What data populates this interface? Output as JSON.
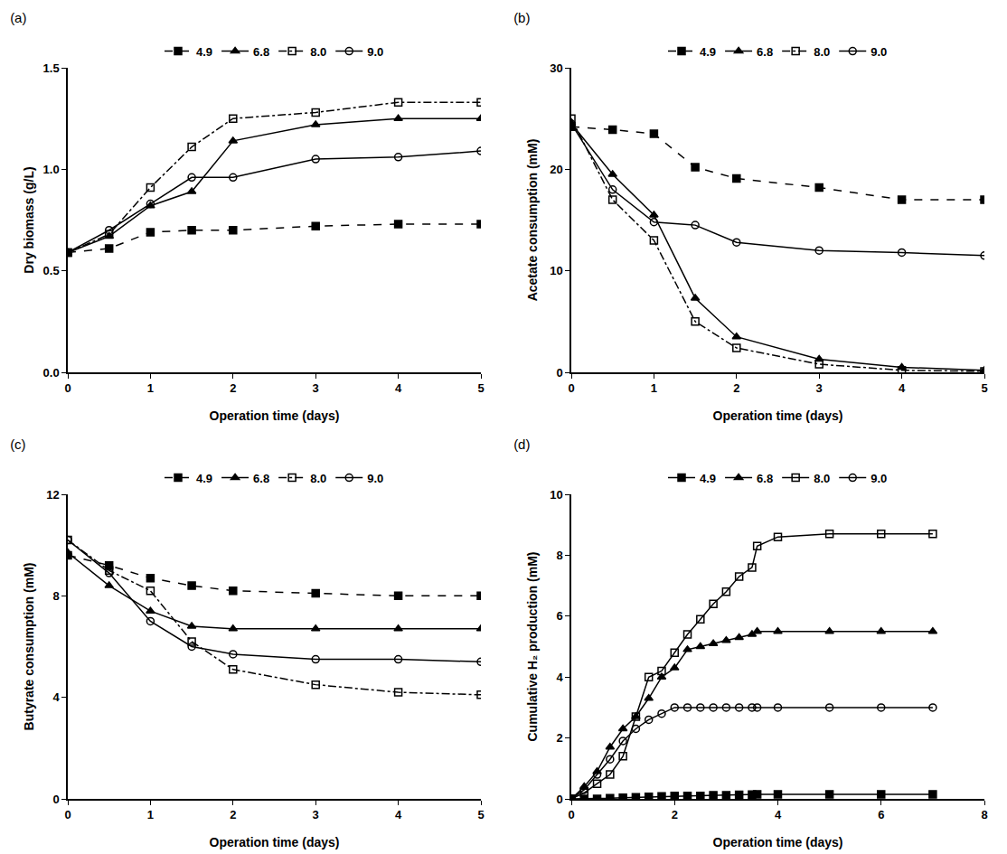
{
  "chart_data": [
    {
      "type": "line",
      "title": "(a)",
      "x_label": "Operation time (days)",
      "y_label": "Dry biomass (g/L)",
      "x": [
        0,
        0.5,
        1,
        1.5,
        2,
        3,
        4,
        5
      ],
      "series": [
        {
          "name": "4.9",
          "color": "#000000",
          "marker": "square",
          "line_style": "dash",
          "values": [
            0.59,
            0.61,
            0.69,
            0.7,
            0.7,
            0.72,
            0.73,
            0.73
          ]
        },
        {
          "name": "6.8",
          "color": "#000000",
          "marker": "triangle-up",
          "line_style": "solid",
          "values": [
            0.59,
            0.67,
            0.82,
            0.89,
            1.14,
            1.22,
            1.25,
            1.25
          ]
        },
        {
          "name": "8.0",
          "color": "#000000",
          "marker": "square-open",
          "line_style": "dashdot",
          "values": [
            0.59,
            0.68,
            0.91,
            1.11,
            1.25,
            1.28,
            1.33,
            1.33
          ]
        },
        {
          "name": "9.0",
          "color": "#000000",
          "marker": "circle-open",
          "line_style": "solid",
          "values": [
            0.59,
            0.7,
            0.83,
            0.96,
            0.96,
            1.05,
            1.06,
            1.09
          ]
        }
      ],
      "xlim": [
        0,
        5
      ],
      "xticks": [
        0,
        1,
        2,
        3,
        4,
        5
      ],
      "ylim": [
        0,
        1.5
      ],
      "yticks": [
        {
          "value": 0,
          "label": "0.0"
        },
        {
          "value": 0.5,
          "label": "0.5"
        },
        {
          "value": 1,
          "label": "1.0"
        },
        {
          "value": 1.5,
          "label": "1.5"
        }
      ],
      "grid": false,
      "legend": "top"
    },
    {
      "type": "line",
      "title": "(b)",
      "x_label": "Operation time (days)",
      "y_label": "Acetate consumption (mM)",
      "x": [
        0,
        0.5,
        1,
        1.5,
        2,
        3,
        4,
        5
      ],
      "series": [
        {
          "name": "4.9",
          "color": "#000000",
          "marker": "square",
          "line_style": "dash",
          "values": [
            24.2,
            23.9,
            23.5,
            20.2,
            19.1,
            18.2,
            17.0,
            17.0
          ]
        },
        {
          "name": "6.8",
          "color": "#000000",
          "marker": "triangle-up",
          "line_style": "solid",
          "values": [
            24.5,
            19.5,
            15.5,
            7.3,
            3.5,
            1.3,
            0.5,
            0.2
          ]
        },
        {
          "name": "8.0",
          "color": "#000000",
          "marker": "square-open",
          "line_style": "dashdot",
          "values": [
            25.0,
            17.0,
            13.0,
            5.0,
            2.4,
            0.8,
            0.2,
            0.1
          ]
        },
        {
          "name": "9.0",
          "color": "#000000",
          "marker": "circle-open",
          "line_style": "solid",
          "values": [
            24.5,
            18.0,
            14.8,
            14.5,
            12.8,
            12.0,
            11.8,
            11.5
          ]
        }
      ],
      "xlim": [
        0,
        5
      ],
      "xticks": [
        0,
        1,
        2,
        3,
        4,
        5
      ],
      "ylim": [
        0,
        30
      ],
      "yticks": [
        0,
        10,
        20,
        30
      ],
      "grid": false,
      "legend": "top"
    },
    {
      "type": "line",
      "title": "(c)",
      "x_label": "Operation time (days)",
      "y_label": "Butyrate consumption (mM)",
      "x": [
        0,
        0.5,
        1,
        1.5,
        2,
        3,
        4,
        5
      ],
      "series": [
        {
          "name": "4.9",
          "color": "#000000",
          "marker": "square",
          "line_style": "dash",
          "values": [
            9.6,
            9.2,
            8.7,
            8.4,
            8.2,
            8.1,
            8.0,
            8.0
          ]
        },
        {
          "name": "6.8",
          "color": "#000000",
          "marker": "triangle-up",
          "line_style": "solid",
          "values": [
            9.7,
            8.4,
            7.4,
            6.8,
            6.7,
            6.7,
            6.7,
            6.7
          ]
        },
        {
          "name": "8.0",
          "color": "#000000",
          "marker": "square-open",
          "line_style": "dashdot",
          "values": [
            10.2,
            9.0,
            8.2,
            6.2,
            5.1,
            4.5,
            4.2,
            4.1
          ]
        },
        {
          "name": "9.0",
          "color": "#000000",
          "marker": "circle-open",
          "line_style": "solid",
          "values": [
            10.2,
            8.9,
            7.0,
            6.0,
            5.7,
            5.5,
            5.5,
            5.4
          ]
        }
      ],
      "xlim": [
        0,
        5
      ],
      "xticks": [
        0,
        1,
        2,
        3,
        4,
        5
      ],
      "ylim": [
        0,
        12
      ],
      "yticks": [
        0,
        4,
        8,
        12
      ],
      "grid": false,
      "legend": "top"
    },
    {
      "type": "line",
      "title": "(d)",
      "x_label": "Operation time (days)",
      "y_label": "Cumulative H₂ production (mM)",
      "x": [
        0,
        0.25,
        0.5,
        0.75,
        1,
        1.25,
        1.5,
        1.75,
        2,
        2.25,
        2.5,
        2.75,
        3,
        3.25,
        3.5,
        3.6,
        4,
        5,
        6,
        7
      ],
      "series": [
        {
          "name": "4.9",
          "color": "#000000",
          "marker": "square",
          "line_style": "solid",
          "values": [
            0,
            0,
            0,
            0.02,
            0.04,
            0.05,
            0.07,
            0.08,
            0.1,
            0.1,
            0.1,
            0.12,
            0.12,
            0.13,
            0.14,
            0.15,
            0.15,
            0.15,
            0.15,
            0.15
          ]
        },
        {
          "name": "6.8",
          "color": "#000000",
          "marker": "triangle-up",
          "line_style": "solid",
          "values": [
            0,
            0.4,
            0.9,
            1.7,
            2.3,
            2.7,
            3.3,
            4.0,
            4.3,
            4.9,
            5.0,
            5.1,
            5.2,
            5.3,
            5.4,
            5.5,
            5.5,
            5.5,
            5.5,
            5.5
          ]
        },
        {
          "name": "8.0",
          "color": "#000000",
          "marker": "square-open",
          "line_style": "solid",
          "values": [
            0,
            0.2,
            0.5,
            0.8,
            1.4,
            2.7,
            4.0,
            4.2,
            4.8,
            5.4,
            5.9,
            6.4,
            6.8,
            7.3,
            7.6,
            8.3,
            8.6,
            8.7,
            8.7,
            8.7
          ]
        },
        {
          "name": "9.0",
          "color": "#000000",
          "marker": "circle-open",
          "line_style": "solid",
          "values": [
            0,
            0.3,
            0.8,
            1.3,
            1.9,
            2.3,
            2.6,
            2.8,
            3.0,
            3.0,
            3.0,
            3.0,
            3.0,
            3.0,
            3.0,
            3.0,
            3.0,
            3.0,
            3.0,
            3.0
          ]
        }
      ],
      "xlim": [
        0,
        8
      ],
      "xticks": [
        0,
        2,
        4,
        6,
        8
      ],
      "ylim": [
        0,
        10
      ],
      "yticks": [
        0,
        2,
        4,
        6,
        8,
        10
      ],
      "grid": false,
      "legend": "top"
    }
  ]
}
